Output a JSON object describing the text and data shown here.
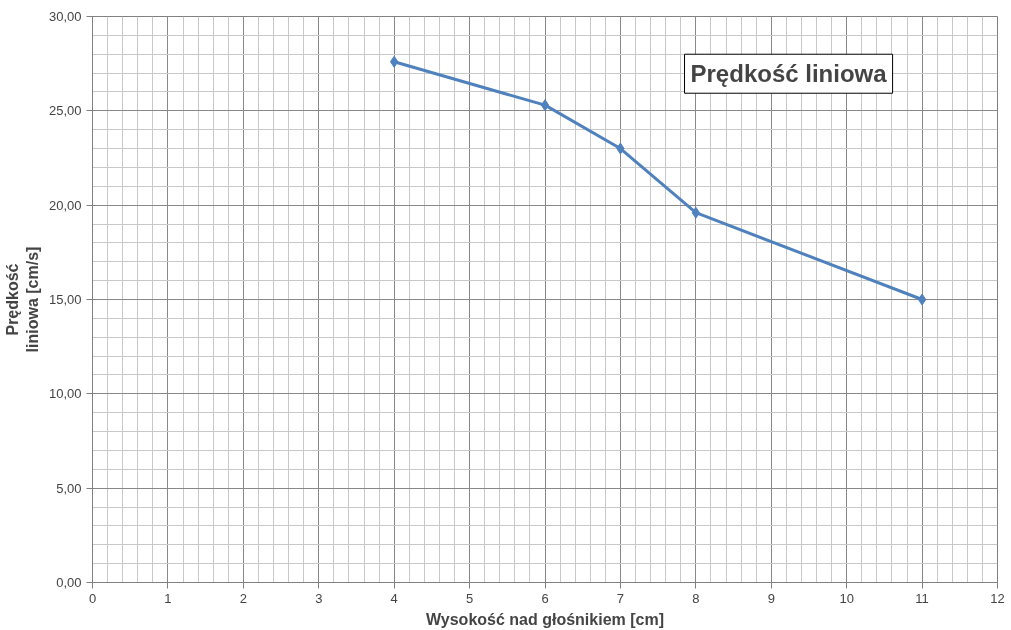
{
  "chart_data": {
    "type": "line",
    "title": "Prędkość liniowa",
    "xlabel": "Wysokość nad głośnikiem [cm]",
    "ylabel": "Prędkość\nliniowa [cm/s]",
    "x": [
      4,
      6,
      7,
      8,
      11
    ],
    "series": [
      {
        "color": "#4f81bd",
        "values": [
          27.6,
          25.3,
          23.0,
          19.6,
          15.0
        ]
      }
    ],
    "xlim": [
      0,
      12
    ],
    "xticks": [
      0,
      1,
      2,
      3,
      4,
      5,
      6,
      7,
      8,
      9,
      10,
      11,
      12
    ],
    "ylim": [
      0,
      30
    ],
    "yticks": [
      {
        "value": 0,
        "label": "0,00"
      },
      {
        "value": 5,
        "label": "5,00"
      },
      {
        "value": 10,
        "label": "10,00"
      },
      {
        "value": 15,
        "label": "15,00"
      },
      {
        "value": 20,
        "label": "20,00"
      },
      {
        "value": 25,
        "label": "25,00"
      },
      {
        "value": 30,
        "label": "30,00"
      }
    ],
    "grid": true,
    "marker": "diamond",
    "line_style": "solid"
  }
}
